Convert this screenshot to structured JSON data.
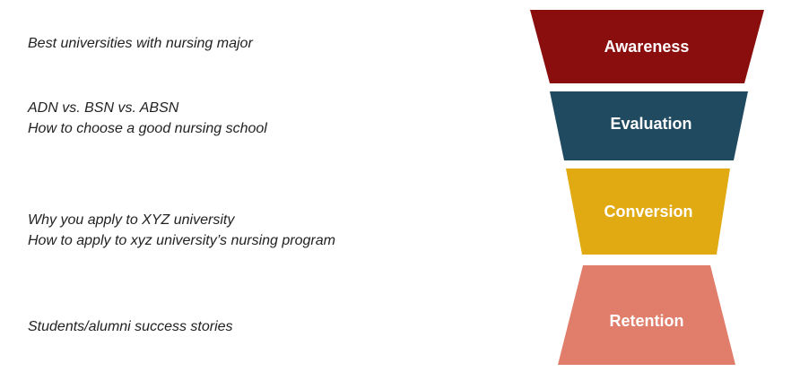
{
  "funnel": {
    "stages": [
      {
        "label": "Awareness",
        "color": "#8b0e0e",
        "notes": [
          "Best universities with nursing major"
        ]
      },
      {
        "label": "Evaluation",
        "color": "#1f4a60",
        "notes": [
          "ADN vs. BSN vs. ABSN",
          "How to choose a good nursing school"
        ]
      },
      {
        "label": "Conversion",
        "color": "#e2aa12",
        "notes": [
          "Why you apply to XYZ university",
          "How to apply to xyz university’s nursing program"
        ]
      },
      {
        "label": "Retention",
        "color": "#e07d6b",
        "notes": [
          "Students/alumni success stories"
        ]
      }
    ]
  }
}
